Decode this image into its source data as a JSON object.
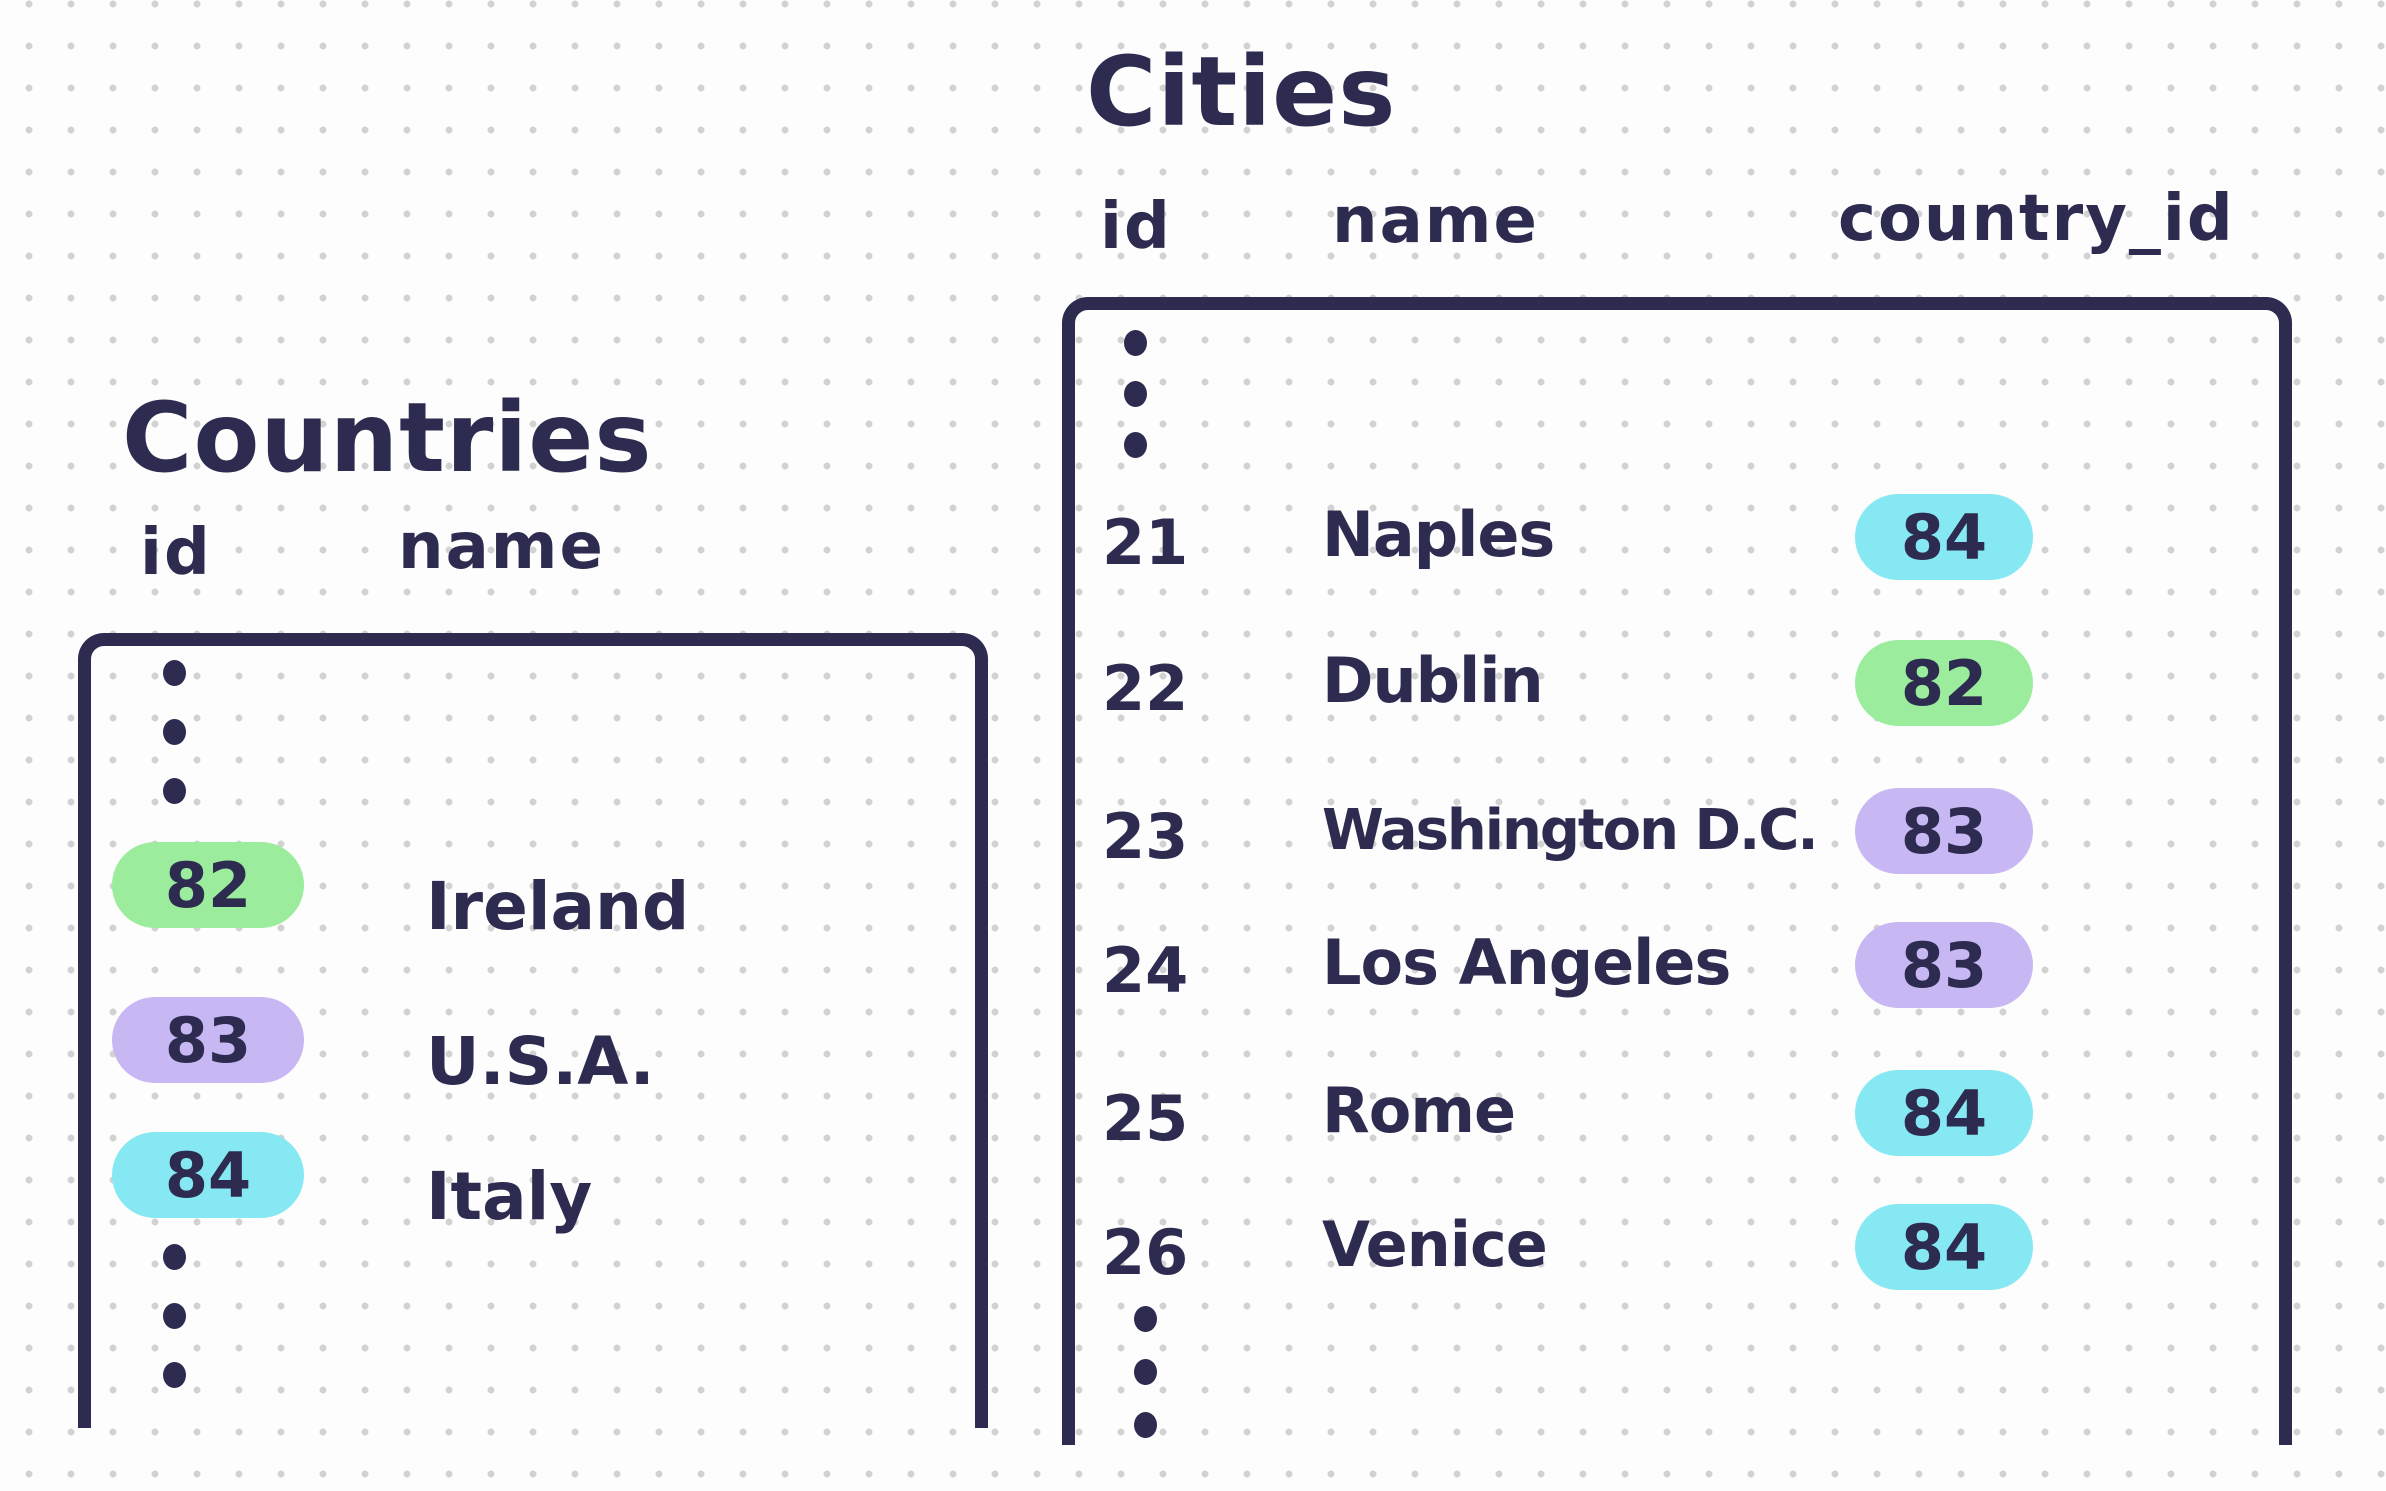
{
  "palette": {
    "ink": "#2d2c50",
    "badge_green": "#9cec9d",
    "badge_purple": "#c7b7f3",
    "badge_cyan": "#85e8f3",
    "grid_dot": "#d2d2d2",
    "background": "#fdfdfd"
  },
  "countries_table": {
    "title": "Countries",
    "columns": [
      "id",
      "name"
    ],
    "rows": [
      {
        "id": "82",
        "name": "Ireland",
        "badge_color": "#9cec9d"
      },
      {
        "id": "83",
        "name": "U.S.A.",
        "badge_color": "#c7b7f3"
      },
      {
        "id": "84",
        "name": "Italy",
        "badge_color": "#85e8f3"
      }
    ]
  },
  "cities_table": {
    "title": "Cities",
    "columns": [
      "id",
      "name",
      "country_id"
    ],
    "rows": [
      {
        "id": "21",
        "name": "Naples",
        "country_id": "84",
        "badge_color": "#85e8f3"
      },
      {
        "id": "22",
        "name": "Dublin",
        "country_id": "82",
        "badge_color": "#9cec9d"
      },
      {
        "id": "23",
        "name": "Washington D.C.",
        "country_id": "83",
        "badge_color": "#c7b7f3"
      },
      {
        "id": "24",
        "name": "Los Angeles",
        "country_id": "83",
        "badge_color": "#c7b7f3"
      },
      {
        "id": "25",
        "name": "Rome",
        "country_id": "84",
        "badge_color": "#85e8f3"
      },
      {
        "id": "26",
        "name": "Venice",
        "country_id": "84",
        "badge_color": "#85e8f3"
      }
    ]
  }
}
